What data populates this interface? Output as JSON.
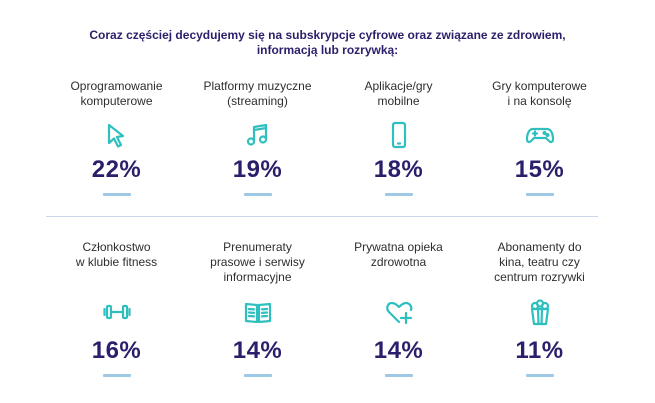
{
  "headline": "Coraz częściej decydujemy się na subskrypcje cyfrowe oraz związane ze zdrowiem, informacją lub rozrywką:",
  "accent_color": "#2fbfbf",
  "text_color": "#2a1f6a",
  "row1": [
    {
      "label": "Oprogramowanie\nkomputerowe",
      "pct": "22%",
      "icon": "cursor-icon"
    },
    {
      "label": "Platformy muzyczne\n(streaming)",
      "pct": "19%",
      "icon": "music-note-icon"
    },
    {
      "label": "Aplikacje/gry\nmobilne",
      "pct": "18%",
      "icon": "smartphone-icon"
    },
    {
      "label": "Gry komputerowe\ni na konsolę",
      "pct": "15%",
      "icon": "gamepad-icon"
    }
  ],
  "row2": [
    {
      "label": "Członkostwo\nw klubie fitness",
      "pct": "16%",
      "icon": "dumbbell-icon"
    },
    {
      "label": "Prenumeraty\nprasowe i serwisy\ninformacyjne",
      "pct": "14%",
      "icon": "open-book-icon"
    },
    {
      "label": "Prywatna opieka\nzdrowotna",
      "pct": "14%",
      "icon": "heart-plus-icon"
    },
    {
      "label": "Abonamenty do\nkina, teatru czy\ncentrum rozrywki",
      "pct": "11%",
      "icon": "popcorn-icon"
    }
  ]
}
